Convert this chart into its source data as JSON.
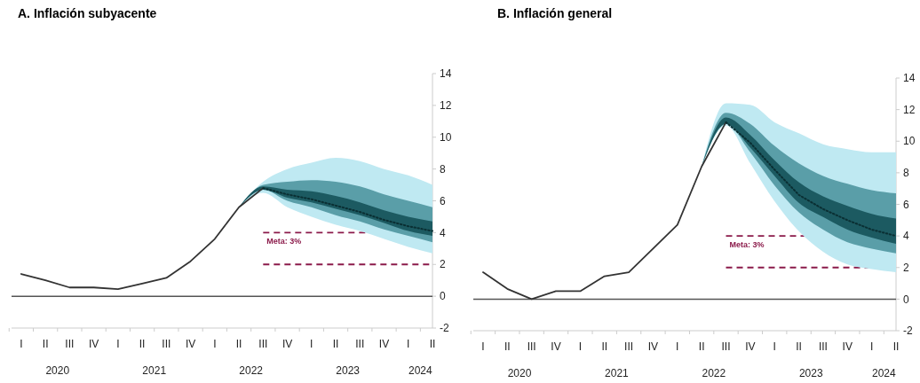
{
  "chart_data": [
    {
      "type": "line",
      "title": "A. Inflación subyacente",
      "categories": [
        "I",
        "II",
        "III",
        "IV",
        "I",
        "II",
        "III",
        "IV",
        "I",
        "II",
        "III",
        "IV",
        "I",
        "II",
        "III",
        "IV",
        "I",
        "II"
      ],
      "series": [
        {
          "color": "#bfe9f2",
          "values": [
            null,
            null,
            null,
            null,
            null,
            null,
            null,
            null,
            null,
            null,
            null,
            null,
            null,
            null,
            null,
            null,
            null,
            null
          ],
          "lower": [
            null,
            null,
            null,
            null,
            null,
            null,
            null,
            null,
            null,
            5.6,
            6.5,
            5.6,
            5.0,
            4.5,
            4.1,
            3.6,
            3.1,
            2.7
          ],
          "upper": [
            null,
            null,
            null,
            null,
            null,
            null,
            null,
            null,
            null,
            5.6,
            7.2,
            8.0,
            8.4,
            8.7,
            8.5,
            8.0,
            7.6,
            7.0
          ]
        },
        {
          "color": "#5a9ea8",
          "values": [
            null,
            null,
            null,
            null,
            null,
            null,
            null,
            null,
            null,
            null,
            null,
            null,
            null,
            null,
            null,
            null,
            null,
            null
          ],
          "lower": [
            null,
            null,
            null,
            null,
            null,
            null,
            null,
            null,
            null,
            5.6,
            6.7,
            6.0,
            5.6,
            5.1,
            4.7,
            4.2,
            3.8,
            3.4
          ],
          "upper": [
            null,
            null,
            null,
            null,
            null,
            null,
            null,
            null,
            null,
            5.6,
            7.0,
            7.2,
            7.3,
            7.2,
            6.9,
            6.4,
            6.0,
            5.6
          ]
        },
        {
          "color": "#1c5a61",
          "values": [
            null,
            null,
            null,
            null,
            null,
            null,
            null,
            null,
            null,
            null,
            null,
            null,
            null,
            null,
            null,
            null,
            null,
            null
          ],
          "lower": [
            null,
            null,
            null,
            null,
            null,
            null,
            null,
            null,
            null,
            5.6,
            6.7,
            6.2,
            5.9,
            5.5,
            5.1,
            4.6,
            4.1,
            3.8
          ],
          "upper": [
            null,
            null,
            null,
            null,
            null,
            null,
            null,
            null,
            null,
            5.6,
            6.9,
            6.7,
            6.6,
            6.3,
            5.9,
            5.4,
            5.0,
            4.7
          ]
        },
        {
          "color": "#333333",
          "line_style": "solid",
          "values": [
            1.4,
            1.0,
            0.55,
            0.55,
            0.45,
            0.8,
            1.15,
            2.2,
            3.6,
            5.6,
            6.8,
            null,
            null,
            null,
            null,
            null,
            null,
            null
          ]
        },
        {
          "color": "#0a2f33",
          "line_style": "dotted",
          "values": [
            null,
            null,
            null,
            null,
            null,
            null,
            null,
            null,
            null,
            null,
            6.8,
            6.4,
            6.1,
            5.7,
            5.3,
            4.8,
            4.4,
            4.1
          ]
        }
      ],
      "ylim": [
        -2,
        14
      ],
      "yticks": [
        -2,
        0,
        2,
        4,
        6,
        8,
        10,
        12,
        14
      ],
      "grid": false,
      "ref_lines": [
        {
          "axis": "y",
          "value": 0,
          "color": "#555555",
          "line_style": "solid"
        },
        {
          "axis": "y",
          "value": 4,
          "color": "#8b1a4a",
          "line_style": "dashed"
        },
        {
          "axis": "y",
          "value": 2,
          "color": "#8b1a4a",
          "line_style": "dashed"
        }
      ],
      "annotations": [
        "Meta: 3%",
        "2020",
        "2021",
        "2022",
        "2023",
        "2024"
      ]
    },
    {
      "type": "line",
      "title": "B. Inflación general",
      "categories": [
        "I",
        "II",
        "III",
        "IV",
        "I",
        "II",
        "III",
        "IV",
        "I",
        "II",
        "III",
        "IV",
        "I",
        "II",
        "III",
        "IV",
        "I",
        "II"
      ],
      "series": [
        {
          "color": "#bfe9f2",
          "values": [
            null,
            null,
            null,
            null,
            null,
            null,
            null,
            null,
            null,
            null,
            null,
            null,
            null,
            null,
            null,
            null,
            null,
            null
          ],
          "lower": [
            null,
            null,
            null,
            null,
            null,
            null,
            null,
            null,
            null,
            8.4,
            11.0,
            8.6,
            6.2,
            4.3,
            3.0,
            2.2,
            1.9,
            1.7
          ],
          "upper": [
            null,
            null,
            null,
            null,
            null,
            null,
            null,
            null,
            null,
            8.4,
            12.4,
            12.3,
            11.2,
            10.5,
            9.8,
            9.5,
            9.3,
            9.3
          ]
        },
        {
          "color": "#5a9ea8",
          "values": [
            null,
            null,
            null,
            null,
            null,
            null,
            null,
            null,
            null,
            null,
            null,
            null,
            null,
            null,
            null,
            null,
            null,
            null
          ],
          "lower": [
            null,
            null,
            null,
            null,
            null,
            null,
            null,
            null,
            null,
            8.4,
            11.1,
            9.3,
            7.2,
            5.5,
            4.4,
            3.6,
            3.2,
            2.9
          ],
          "upper": [
            null,
            null,
            null,
            null,
            null,
            null,
            null,
            null,
            null,
            8.4,
            11.8,
            11.1,
            9.7,
            8.6,
            7.8,
            7.3,
            6.9,
            6.7
          ]
        },
        {
          "color": "#1c5a61",
          "values": [
            null,
            null,
            null,
            null,
            null,
            null,
            null,
            null,
            null,
            null,
            null,
            null,
            null,
            null,
            null,
            null,
            null,
            null
          ],
          "lower": [
            null,
            null,
            null,
            null,
            null,
            null,
            null,
            null,
            null,
            8.4,
            11.1,
            9.6,
            7.8,
            6.1,
            5.2,
            4.4,
            3.9,
            3.5
          ],
          "upper": [
            null,
            null,
            null,
            null,
            null,
            null,
            null,
            null,
            null,
            8.4,
            11.5,
            10.4,
            8.8,
            7.4,
            6.5,
            5.9,
            5.4,
            5.1
          ]
        },
        {
          "color": "#333333",
          "line_style": "solid",
          "values": [
            1.7,
            0.65,
            0.0,
            0.5,
            0.5,
            1.45,
            1.7,
            3.2,
            4.7,
            8.4,
            11.2,
            null,
            null,
            null,
            null,
            null,
            null,
            null
          ]
        },
        {
          "color": "#0a2f33",
          "line_style": "dotted",
          "values": [
            null,
            null,
            null,
            null,
            null,
            null,
            null,
            null,
            null,
            null,
            11.2,
            9.9,
            8.2,
            6.6,
            5.7,
            5.0,
            4.4,
            4.0
          ]
        }
      ],
      "ylim": [
        -2,
        14
      ],
      "yticks": [
        -2,
        0,
        2,
        4,
        6,
        8,
        10,
        12,
        14
      ],
      "grid": false,
      "ref_lines": [
        {
          "axis": "y",
          "value": 0,
          "color": "#555555",
          "line_style": "solid"
        },
        {
          "axis": "y",
          "value": 4,
          "color": "#8b1a4a",
          "line_style": "dashed"
        },
        {
          "axis": "y",
          "value": 2,
          "color": "#8b1a4a",
          "line_style": "dashed"
        }
      ],
      "annotations": [
        "Meta: 3%",
        "2020",
        "2021",
        "2022",
        "2023",
        "2024"
      ]
    }
  ]
}
